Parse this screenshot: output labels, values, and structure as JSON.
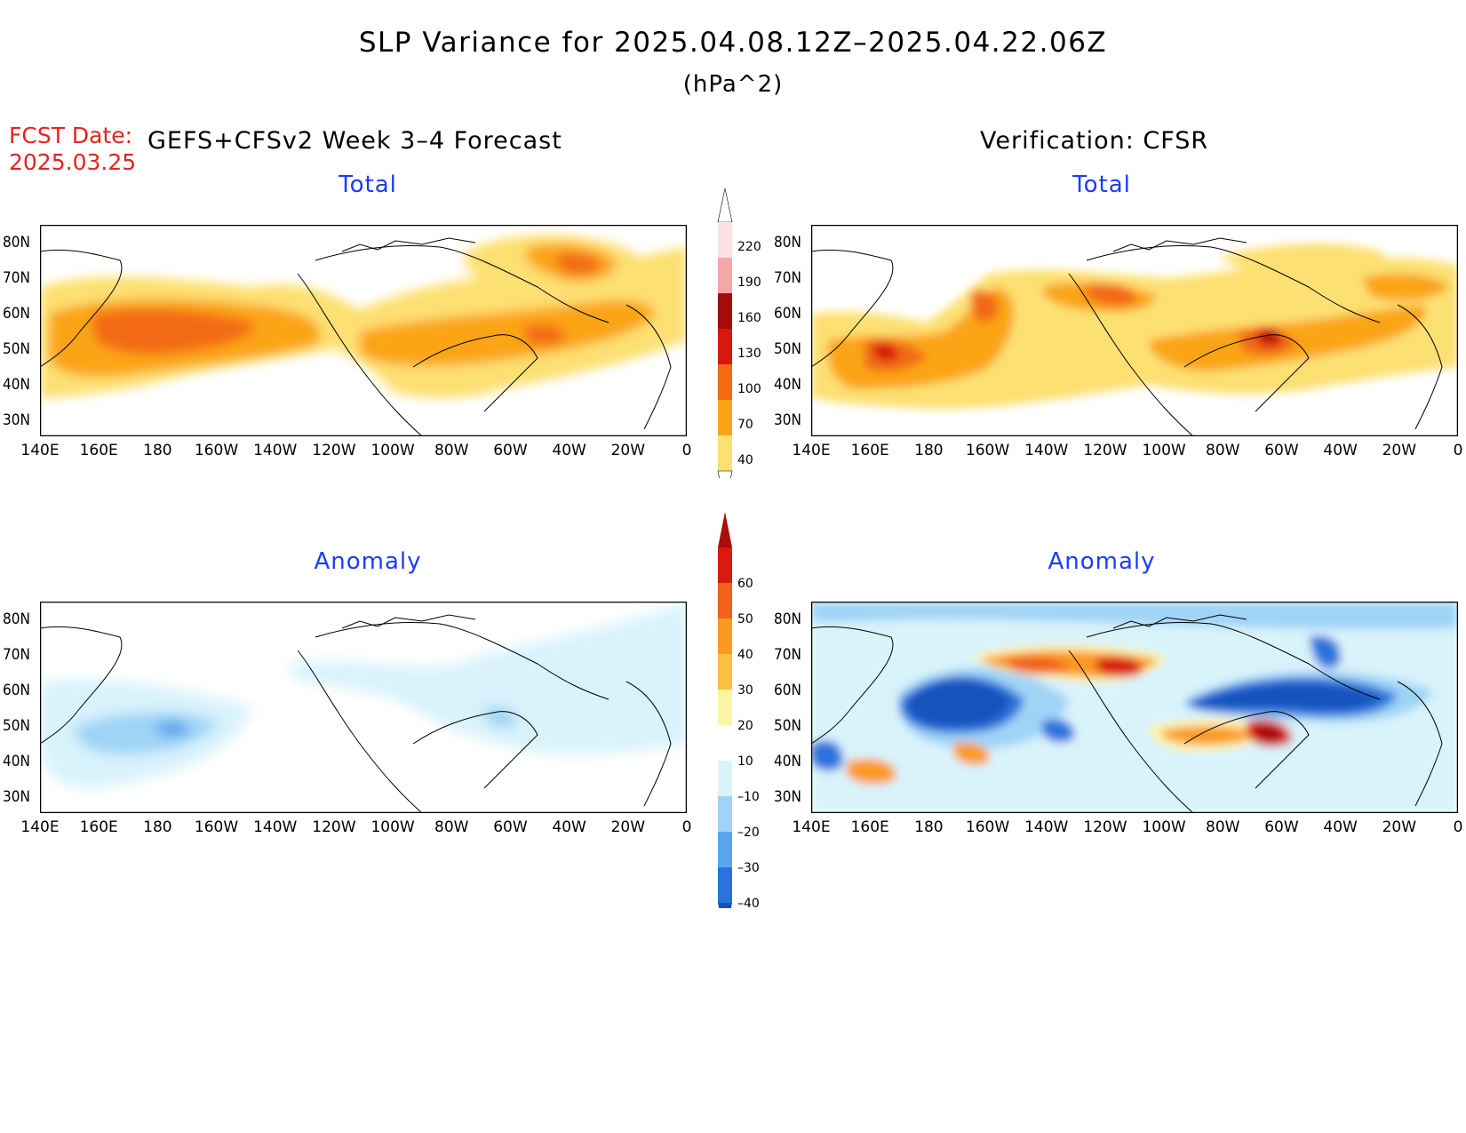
{
  "title": "SLP Variance for 2025.04.08.12Z–2025.04.22.06Z",
  "units": "(hPa^2)",
  "fcst_label_line1": "FCST Date:",
  "fcst_label_line2": "2025.03.25",
  "left_header": "GEFS+CFSv2 Week 3–4 Forecast",
  "right_header": "Verification: CFSR",
  "panels": {
    "forecast_total": {
      "label": "Total"
    },
    "verification_total": {
      "label": "Total"
    },
    "forecast_anomaly": {
      "label": "Anomaly"
    },
    "verification_anomaly": {
      "label": "Anomaly"
    }
  },
  "lat_ticks": [
    "80N",
    "70N",
    "60N",
    "50N",
    "40N",
    "30N"
  ],
  "lon_ticks": [
    "140E",
    "160E",
    "180",
    "160W",
    "140W",
    "120W",
    "100W",
    "80W",
    "60W",
    "40W",
    "20W",
    "0"
  ],
  "total_colorbar": {
    "levels": [
      "220",
      "190",
      "160",
      "130",
      "100",
      "70",
      "40"
    ],
    "colors": [
      "#fde2e4",
      "#f4a6a8",
      "#a30c0c",
      "#d8180e",
      "#f26a12",
      "#fba418",
      "#fde072"
    ]
  },
  "anomaly_colorbar": {
    "levels": [
      "60",
      "50",
      "40",
      "30",
      "20",
      "10",
      "–10",
      "–20",
      "–30",
      "–40"
    ],
    "colors": [
      "#a80d0d",
      "#d91a0e",
      "#f0621a",
      "#fb9a20",
      "#fcc044",
      "#fdf4a6",
      "#ffffff",
      "#d9f3fb",
      "#9fd4f6",
      "#5aa6ec",
      "#2b73dc",
      "#1552bd"
    ]
  }
}
